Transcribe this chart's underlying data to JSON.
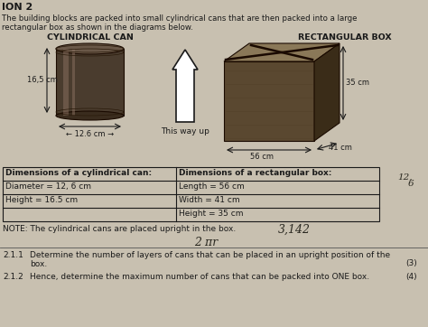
{
  "title": "ION 2",
  "intro_line1": "The building blocks are packed into small cylindrical cans that are then packed into a large",
  "intro_line2": "rectangular box as shown in the diagrams below.",
  "cyl_label": "CYLINDRICAL CAN",
  "box_label": "RECTANGULAR BOX",
  "this_way_up": "This way up",
  "cyl_height_label": "16,5 cm",
  "cyl_diam_label": "← 12.6 cm →",
  "box_35cm": "35 cm",
  "box_56cm": "56 cm",
  "box_41cm": "41 cm",
  "table_header_left": "Dimensions of a cylindrical can:",
  "table_header_right": "Dimensions of a rectangular box:",
  "table_row1_left": "Diameter = 12, 6 cm",
  "table_row1_right": "Length = 56 cm",
  "table_row2_left": "Height = 16.5 cm",
  "table_row2_right": "Width = 41 cm",
  "table_row3_right": "Height = 35 cm",
  "note_text": "NOTE: The cylindrical cans are placed upright in the box.",
  "handwritten1": "3,142",
  "handwritten2": "2 πr",
  "handwritten3": "12,",
  "handwritten3b": "6",
  "q211_num": "2.1.1",
  "q211_text": "Determine the number of layers of cans that can be placed in an upright position of the",
  "q211_text2": "box.",
  "q211_marks": "(3)",
  "q212_num": "2.1.2",
  "q212_text": "Hence, determine the maximum number of cans that can be packed into ONE box.",
  "q212_marks": "(4)",
  "bg_color": "#c8c0b0",
  "text_color": "#1a1a1a"
}
